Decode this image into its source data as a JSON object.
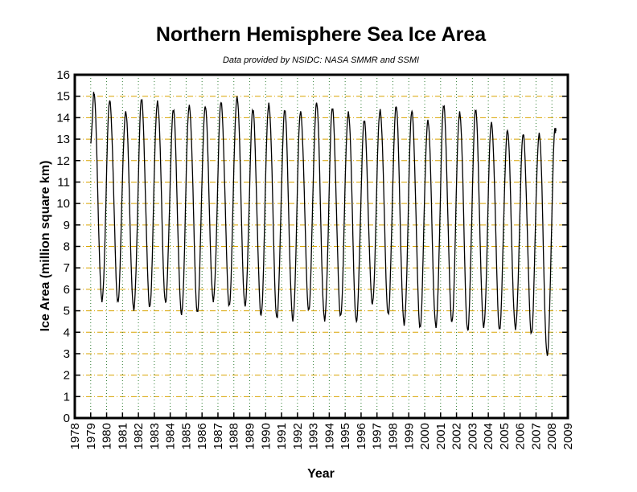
{
  "chart_data": {
    "type": "line",
    "title": "Northern Hemisphere Sea Ice Area",
    "subtitle": "Data provided by NSIDC: NASA SMMR and SSMI",
    "xlabel": "Year",
    "ylabel": "Ice Area (million square km)",
    "xlim": [
      1978,
      2009
    ],
    "ylim": [
      0,
      16
    ],
    "xticks": [
      "1978",
      "1979",
      "1980",
      "1981",
      "1982",
      "1983",
      "1984",
      "1985",
      "1986",
      "1987",
      "1988",
      "1989",
      "1990",
      "1991",
      "1992",
      "1993",
      "1994",
      "1995",
      "1996",
      "1997",
      "1998",
      "1999",
      "2000",
      "2001",
      "2002",
      "2003",
      "2004",
      "2005",
      "2006",
      "2007",
      "2008",
      "2009"
    ],
    "yticks": [
      "0",
      "1",
      "2",
      "3",
      "4",
      "5",
      "6",
      "7",
      "8",
      "9",
      "10",
      "11",
      "12",
      "13",
      "14",
      "15",
      "16"
    ],
    "grid": true,
    "colors": {
      "line": "#000000",
      "hgrid": "#d9a400",
      "vgrid": "#2e7d32"
    },
    "series": [
      {
        "annual_extremes": [
          {
            "year": 1979,
            "max": 15.1,
            "min": 5.4
          },
          {
            "year": 1980,
            "max": 14.8,
            "min": 5.5
          },
          {
            "year": 1981,
            "max": 14.3,
            "min": 5.0
          },
          {
            "year": 1982,
            "max": 14.8,
            "min": 5.2
          },
          {
            "year": 1983,
            "max": 14.8,
            "min": 5.4
          },
          {
            "year": 1984,
            "max": 14.3,
            "min": 4.8
          },
          {
            "year": 1985,
            "max": 14.6,
            "min": 5.0
          },
          {
            "year": 1986,
            "max": 14.5,
            "min": 5.4
          },
          {
            "year": 1987,
            "max": 14.7,
            "min": 5.3
          },
          {
            "year": 1988,
            "max": 15.0,
            "min": 5.2
          },
          {
            "year": 1989,
            "max": 14.3,
            "min": 4.8
          },
          {
            "year": 1990,
            "max": 14.7,
            "min": 4.7
          },
          {
            "year": 1991,
            "max": 14.3,
            "min": 4.5
          },
          {
            "year": 1992,
            "max": 14.3,
            "min": 5.1
          },
          {
            "year": 1993,
            "max": 14.7,
            "min": 4.5
          },
          {
            "year": 1994,
            "max": 14.4,
            "min": 4.8
          },
          {
            "year": 1995,
            "max": 14.3,
            "min": 4.5
          },
          {
            "year": 1996,
            "max": 13.8,
            "min": 5.3
          },
          {
            "year": 1997,
            "max": 14.4,
            "min": 4.9
          },
          {
            "year": 1998,
            "max": 14.5,
            "min": 4.3
          },
          {
            "year": 1999,
            "max": 14.3,
            "min": 4.3
          },
          {
            "year": 2000,
            "max": 13.9,
            "min": 4.2
          },
          {
            "year": 2001,
            "max": 14.5,
            "min": 4.5
          },
          {
            "year": 2002,
            "max": 14.3,
            "min": 4.1
          },
          {
            "year": 2003,
            "max": 14.3,
            "min": 4.2
          },
          {
            "year": 2004,
            "max": 13.8,
            "min": 4.2
          },
          {
            "year": 2005,
            "max": 13.4,
            "min": 4.1
          },
          {
            "year": 2006,
            "max": 13.2,
            "min": 4.0
          },
          {
            "year": 2007,
            "max": 13.3,
            "min": 2.9
          },
          {
            "year": 2008,
            "max": 13.4,
            "min": null
          }
        ],
        "start": {
          "x": 1979.0,
          "y": 12.8
        },
        "end": {
          "x": 2008.25,
          "y": 13.4
        }
      }
    ]
  }
}
